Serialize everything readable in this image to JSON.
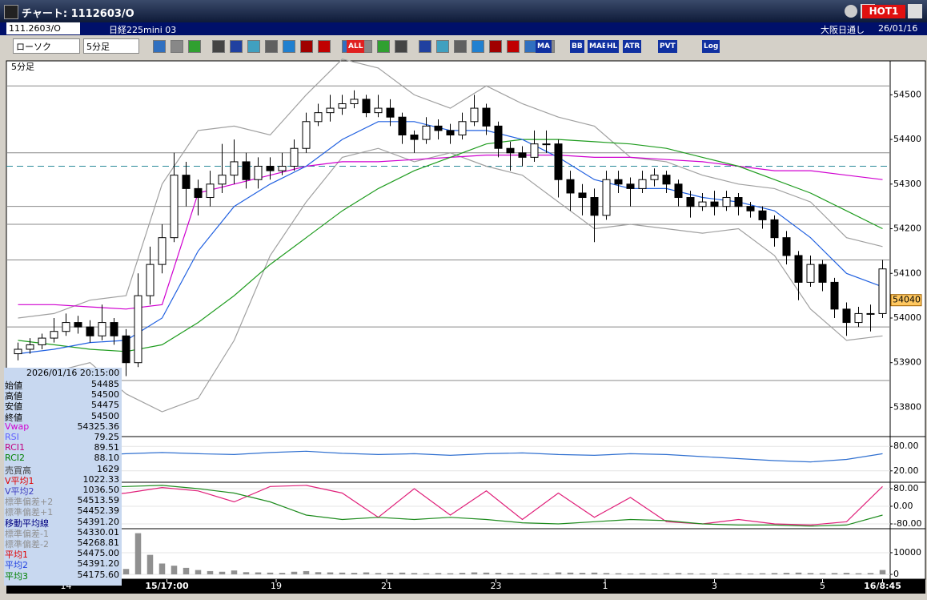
{
  "window": {
    "title": "チャート: 1112603/O",
    "hot": "HOT1"
  },
  "header": {
    "code": "111.2603/O",
    "name": "日経225mini 03",
    "session": "大阪日通し",
    "date": "26/01/16"
  },
  "toolbar": {
    "chart_type": "ローソク",
    "interval": "5分足",
    "buttons": [
      "ALL",
      "MA",
      "BB",
      "MAE",
      "HL",
      "ATR",
      "PVT",
      "Log"
    ]
  },
  "info_panel": {
    "datetime": "2026/01/16 20:15:00",
    "rows": [
      {
        "label": "始値",
        "value": "54485",
        "color": "#000000"
      },
      {
        "label": "高値",
        "value": "54500",
        "color": "#000000"
      },
      {
        "label": "安値",
        "value": "54475",
        "color": "#000000"
      },
      {
        "label": "終値",
        "value": "54500",
        "color": "#000000"
      },
      {
        "label": "Vwap",
        "value": "54325.36",
        "color": "#d000d0"
      },
      {
        "label": "RSI",
        "value": "79.25",
        "color": "#6060ff"
      },
      {
        "label": "RCI1",
        "value": "89.51",
        "color": "#c00080"
      },
      {
        "label": "RCI2",
        "value": "88.10",
        "color": "#008000"
      },
      {
        "label": "売買高",
        "value": "1629",
        "color": "#404040"
      },
      {
        "label": "V平均1",
        "value": "1022.33",
        "color": "#e00000"
      },
      {
        "label": "V平均2",
        "value": "1036.50",
        "color": "#4040c0"
      },
      {
        "label": "標準偏差+2",
        "value": "54513.59",
        "color": "#909090"
      },
      {
        "label": "標準偏差+1",
        "value": "54452.39",
        "color": "#909090"
      },
      {
        "label": "移動平均線",
        "value": "54391.20",
        "color": "#000080"
      },
      {
        "label": "標準偏差-1",
        "value": "54330.01",
        "color": "#909090"
      },
      {
        "label": "標準偏差-2",
        "value": "54268.81",
        "color": "#909090"
      },
      {
        "label": "平均1",
        "value": "54475.00",
        "color": "#e00000"
      },
      {
        "label": "平均2",
        "value": "54391.20",
        "color": "#2040e0"
      },
      {
        "label": "平均3",
        "value": "54175.60",
        "color": "#008000"
      }
    ]
  },
  "chart_data": [
    {
      "type": "candlestick",
      "title": "5分足",
      "up_color": "#ffffff",
      "down_color": "#000000",
      "ylim": [
        53738,
        54576
      ],
      "yticks": [
        53800,
        53900,
        54000,
        54100,
        54200,
        54300,
        54400,
        54500
      ],
      "xlim": [
        -0.5,
        72.5
      ],
      "xticks": [
        {
          "value": 4,
          "label": "14"
        },
        {
          "value": 12.4,
          "label": "15/17:00"
        },
        {
          "value": 21.5,
          "label": "19"
        },
        {
          "value": 30.7,
          "label": "21"
        },
        {
          "value": 39.8,
          "label": "23"
        },
        {
          "value": 48.9,
          "label": "1"
        },
        {
          "value": 58,
          "label": "3"
        },
        {
          "value": 67,
          "label": "5"
        },
        {
          "value": 72,
          "label": "16/8:45"
        }
      ],
      "levels": [
        54520,
        54370,
        54250,
        54210,
        54130,
        53980,
        53860
      ],
      "dashed_level": 54340,
      "last_price": 54040,
      "ohlc": [
        [
          53920,
          53945,
          53905,
          53930
        ],
        [
          53930,
          53955,
          53920,
          53940
        ],
        [
          53940,
          53965,
          53930,
          53955
        ],
        [
          53955,
          54000,
          53945,
          53970
        ],
        [
          53970,
          54010,
          53960,
          53990
        ],
        [
          53990,
          54005,
          53965,
          53980
        ],
        [
          53980,
          53995,
          53945,
          53960
        ],
        [
          53960,
          54030,
          53950,
          53990
        ],
        [
          53990,
          54000,
          53940,
          53960
        ],
        [
          53960,
          53975,
          53870,
          53900
        ],
        [
          53900,
          54100,
          53890,
          54050
        ],
        [
          54050,
          54160,
          54030,
          54120
        ],
        [
          54120,
          54210,
          54100,
          54180
        ],
        [
          54180,
          54370,
          54170,
          54320
        ],
        [
          54320,
          54350,
          54250,
          54290
        ],
        [
          54290,
          54310,
          54230,
          54270
        ],
        [
          54270,
          54330,
          54250,
          54300
        ],
        [
          54300,
          54390,
          54280,
          54320
        ],
        [
          54320,
          54400,
          54300,
          54350
        ],
        [
          54350,
          54370,
          54290,
          54310
        ],
        [
          54310,
          54360,
          54290,
          54340
        ],
        [
          54340,
          54360,
          54310,
          54330
        ],
        [
          54330,
          54370,
          54320,
          54340
        ],
        [
          54340,
          54400,
          54330,
          54380
        ],
        [
          54380,
          54460,
          54370,
          54440
        ],
        [
          54440,
          54480,
          54430,
          54460
        ],
        [
          54460,
          54500,
          54440,
          54470
        ],
        [
          54470,
          54500,
          54455,
          54480
        ],
        [
          54480,
          54510,
          54470,
          54490
        ],
        [
          54490,
          54500,
          54450,
          54460
        ],
        [
          54460,
          54500,
          54450,
          54470
        ],
        [
          54470,
          54490,
          54430,
          54450
        ],
        [
          54450,
          54460,
          54390,
          54410
        ],
        [
          54410,
          54420,
          54370,
          54400
        ],
        [
          54400,
          54450,
          54390,
          54430
        ],
        [
          54430,
          54445,
          54400,
          54420
        ],
        [
          54420,
          54435,
          54390,
          54410
        ],
        [
          54410,
          54460,
          54400,
          54440
        ],
        [
          54440,
          54500,
          54430,
          54470
        ],
        [
          54470,
          54480,
          54410,
          54430
        ],
        [
          54430,
          54440,
          54360,
          54380
        ],
        [
          54380,
          54395,
          54330,
          54370
        ],
        [
          54370,
          54385,
          54340,
          54360
        ],
        [
          54360,
          54420,
          54350,
          54390
        ],
        [
          54390,
          54420,
          54370,
          54390
        ],
        [
          54390,
          54400,
          54270,
          54310
        ],
        [
          54310,
          54330,
          54240,
          54280
        ],
        [
          54280,
          54300,
          54230,
          54270
        ],
        [
          54270,
          54290,
          54170,
          54230
        ],
        [
          54230,
          54330,
          54220,
          54310
        ],
        [
          54310,
          54330,
          54280,
          54300
        ],
        [
          54300,
          54315,
          54250,
          54290
        ],
        [
          54290,
          54330,
          54280,
          54310
        ],
        [
          54310,
          54335,
          54295,
          54320
        ],
        [
          54320,
          54330,
          54280,
          54300
        ],
        [
          54300,
          54310,
          54250,
          54270
        ],
        [
          54270,
          54285,
          54225,
          54250
        ],
        [
          54250,
          54280,
          54240,
          54260
        ],
        [
          54260,
          54285,
          54230,
          54250
        ],
        [
          54250,
          54285,
          54240,
          54270
        ],
        [
          54270,
          54280,
          54230,
          54250
        ],
        [
          54250,
          54260,
          54225,
          54240
        ],
        [
          54240,
          54250,
          54200,
          54220
        ],
        [
          54220,
          54230,
          54160,
          54180
        ],
        [
          54180,
          54195,
          54120,
          54140
        ],
        [
          54140,
          54150,
          54040,
          54080
        ],
        [
          54080,
          54140,
          54070,
          54120
        ],
        [
          54120,
          54130,
          54060,
          54080
        ],
        [
          54080,
          54090,
          54000,
          54020
        ],
        [
          54020,
          54035,
          53960,
          53990
        ],
        [
          53990,
          54025,
          53980,
          54010
        ],
        [
          54010,
          54030,
          53970,
          54010
        ],
        [
          54010,
          54130,
          54000,
          54110
        ]
      ],
      "x": [
        0,
        3,
        6,
        9,
        12,
        15,
        18,
        21,
        24,
        27,
        30,
        33,
        36,
        39,
        42,
        45,
        48,
        51,
        54,
        57,
        60,
        63,
        66,
        69,
        72
      ],
      "series": [
        {
          "color": "#a0a0a0",
          "values": [
            54000,
            54010,
            54040,
            54050,
            54300,
            54420,
            54430,
            54410,
            54500,
            54580,
            54560,
            54500,
            54470,
            54520,
            54480,
            54450,
            54430,
            54360,
            54350,
            54320,
            54300,
            54290,
            54260,
            54180,
            54160
          ]
        },
        {
          "color": "#a0a0a0",
          "values": [
            53880,
            53880,
            53900,
            53830,
            53790,
            53820,
            53950,
            54140,
            54260,
            54360,
            54380,
            54350,
            54370,
            54340,
            54320,
            54260,
            54200,
            54210,
            54200,
            54190,
            54200,
            54140,
            54020,
            53950,
            53960
          ]
        },
        {
          "color": "#d000d0",
          "values": [
            54030,
            54030,
            54025,
            54020,
            54030,
            54280,
            54300,
            54320,
            54340,
            54350,
            54350,
            54355,
            54360,
            54365,
            54365,
            54365,
            54360,
            54360,
            54355,
            54350,
            54340,
            54330,
            54330,
            54320,
            54310
          ]
        },
        {
          "color": "#1f9c1f",
          "values": [
            53950,
            53940,
            53930,
            53925,
            53940,
            53990,
            54050,
            54120,
            54180,
            54240,
            54290,
            54330,
            54360,
            54390,
            54400,
            54400,
            54395,
            54390,
            54380,
            54360,
            54340,
            54310,
            54280,
            54240,
            54200
          ]
        },
        {
          "color": "#2060e0",
          "values": [
            53920,
            53930,
            53945,
            53950,
            54000,
            54150,
            54250,
            54300,
            54340,
            54400,
            54440,
            54440,
            54420,
            54420,
            54400,
            54360,
            54310,
            54290,
            54290,
            54270,
            54260,
            54240,
            54180,
            54100,
            54070
          ]
        }
      ]
    },
    {
      "type": "line",
      "ylim": [
        0,
        100
      ],
      "yticks": [
        {
          "value": 80,
          "label": "80.00"
        },
        {
          "value": 20,
          "label": "20.00"
        }
      ],
      "x": [
        0,
        3,
        6,
        9,
        12,
        15,
        18,
        21,
        24,
        27,
        30,
        33,
        36,
        39,
        42,
        45,
        48,
        51,
        54,
        57,
        60,
        63,
        66,
        69,
        72
      ],
      "series": [
        {
          "color": "#3070d0",
          "values": [
            55,
            60,
            58,
            62,
            65,
            62,
            60,
            65,
            68,
            63,
            60,
            62,
            58,
            62,
            64,
            60,
            58,
            62,
            60,
            55,
            50,
            45,
            42,
            48,
            62
          ]
        }
      ]
    },
    {
      "type": "line",
      "ylim": [
        -100,
        100
      ],
      "yticks": [
        {
          "value": 80,
          "label": "80.00"
        },
        {
          "value": 0,
          "label": "0.00"
        },
        {
          "value": -80,
          "label": "-80.00"
        }
      ],
      "x": [
        0,
        3,
        6,
        9,
        12,
        15,
        18,
        21,
        24,
        27,
        30,
        33,
        36,
        39,
        42,
        45,
        48,
        51,
        54,
        57,
        60,
        63,
        66,
        69,
        72
      ],
      "series": [
        {
          "color": "#e0207a",
          "values": [
            40,
            30,
            45,
            60,
            85,
            70,
            20,
            90,
            95,
            60,
            -50,
            80,
            -40,
            70,
            -60,
            60,
            -50,
            40,
            -70,
            -80,
            -60,
            -80,
            -85,
            -70,
            90
          ]
        },
        {
          "color": "#1f8c1f",
          "values": [
            60,
            70,
            85,
            90,
            95,
            80,
            60,
            20,
            -40,
            -60,
            -50,
            -60,
            -50,
            -60,
            -75,
            -80,
            -70,
            -60,
            -65,
            -80,
            -85,
            -85,
            -90,
            -85,
            -40
          ]
        }
      ]
    },
    {
      "type": "bar",
      "color": "#909090",
      "ylim": [
        0,
        20700
      ],
      "yticks": [
        10000,
        0
      ],
      "values": [
        600,
        300,
        400,
        500,
        800,
        700,
        500,
        900,
        600,
        2500,
        19000,
        9000,
        5000,
        4000,
        3000,
        2000,
        1500,
        1200,
        1800,
        1000,
        900,
        800,
        700,
        1200,
        1500,
        1000,
        900,
        800,
        700,
        900,
        600,
        700,
        800,
        600,
        500,
        600,
        500,
        700,
        900,
        800,
        700,
        600,
        500,
        600,
        500,
        900,
        800,
        700,
        800,
        600,
        500,
        400,
        500,
        400,
        500,
        600,
        500,
        400,
        500,
        400,
        500,
        400,
        500,
        600,
        700,
        800,
        600,
        500,
        600,
        700,
        500,
        600,
        2000
      ]
    }
  ]
}
